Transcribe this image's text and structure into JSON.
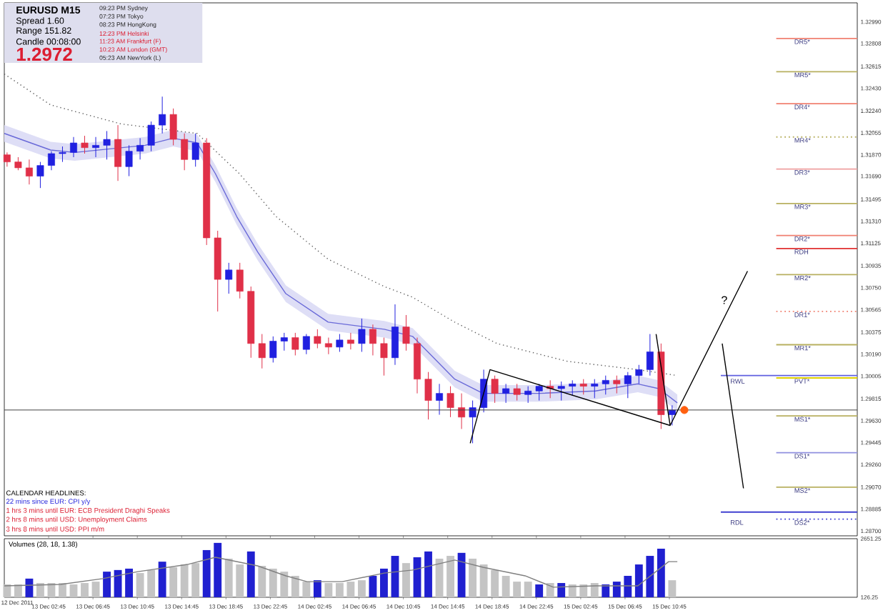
{
  "chart_data": [
    {
      "type": "candlestick",
      "title": "EURUSD M15",
      "x": [
        "2011-12-12T23:00",
        "2011-12-13T00:00",
        "2011-12-13T01:00",
        "2011-12-13T02:00",
        "2011-12-13T03:00",
        "2011-12-13T04:00",
        "2011-12-13T05:00",
        "2011-12-13T06:00",
        "2011-12-13T07:00",
        "2011-12-13T08:00",
        "2011-12-13T09:00",
        "2011-12-13T10:00",
        "2011-12-13T11:00",
        "2011-12-13T12:00",
        "2011-12-13T13:00",
        "2011-12-13T14:00",
        "2011-12-13T15:00",
        "2011-12-13T16:00",
        "2011-12-13T17:00",
        "2011-12-13T18:00",
        "2011-12-13T19:00",
        "2011-12-13T20:00",
        "2011-12-13T21:00",
        "2011-12-13T22:00",
        "2011-12-13T23:00",
        "2011-12-14T00:00",
        "2011-12-14T01:00",
        "2011-12-14T02:00",
        "2011-12-14T03:00",
        "2011-12-14T04:00",
        "2011-12-14T05:00",
        "2011-12-14T06:00",
        "2011-12-14T07:00",
        "2011-12-14T08:00",
        "2011-12-14T09:00",
        "2011-12-14T10:00",
        "2011-12-14T11:00",
        "2011-12-14T12:00",
        "2011-12-14T13:00",
        "2011-12-14T14:00",
        "2011-12-14T15:00",
        "2011-12-14T16:00",
        "2011-12-14T17:00",
        "2011-12-14T18:00",
        "2011-12-14T19:00",
        "2011-12-14T20:00",
        "2011-12-14T21:00",
        "2011-12-14T22:00",
        "2011-12-14T23:00",
        "2011-12-15T00:00",
        "2011-12-15T01:00",
        "2011-12-15T02:00",
        "2011-12-15T03:00",
        "2011-12-15T04:00",
        "2011-12-15T05:00",
        "2011-12-15T06:00",
        "2011-12-15T07:00",
        "2011-12-15T08:00",
        "2011-12-15T09:00",
        "2011-12-15T10:00",
        "2011-12-15T11:00"
      ],
      "ohlc": [
        [
          1.3187,
          1.3189,
          1.3177,
          1.3181
        ],
        [
          1.3181,
          1.3185,
          1.3174,
          1.3176
        ],
        [
          1.3176,
          1.3183,
          1.3162,
          1.3169
        ],
        [
          1.3169,
          1.3181,
          1.3159,
          1.3178
        ],
        [
          1.3178,
          1.319,
          1.3174,
          1.3188
        ],
        [
          1.3188,
          1.3194,
          1.3181,
          1.3189
        ],
        [
          1.3189,
          1.3202,
          1.3185,
          1.3197
        ],
        [
          1.3197,
          1.3203,
          1.3188,
          1.3193
        ],
        [
          1.3193,
          1.3202,
          1.3185,
          1.3195
        ],
        [
          1.3195,
          1.3207,
          1.3183,
          1.32
        ],
        [
          1.32,
          1.3212,
          1.3165,
          1.3177
        ],
        [
          1.3177,
          1.3195,
          1.3169,
          1.319
        ],
        [
          1.319,
          1.3201,
          1.3183,
          1.3195
        ],
        [
          1.3195,
          1.3215,
          1.319,
          1.3212
        ],
        [
          1.3212,
          1.3236,
          1.3205,
          1.3221
        ],
        [
          1.3221,
          1.3226,
          1.3195,
          1.32
        ],
        [
          1.32,
          1.3205,
          1.3174,
          1.3183
        ],
        [
          1.3183,
          1.3205,
          1.3177,
          1.3197
        ],
        [
          1.3197,
          1.3201,
          1.3111,
          1.3117
        ],
        [
          1.3117,
          1.3123,
          1.3055,
          1.3082
        ],
        [
          1.3082,
          1.3096,
          1.307,
          1.309
        ],
        [
          1.309,
          1.3096,
          1.3066,
          1.3072
        ],
        [
          1.3072,
          1.3076,
          1.3016,
          1.3028
        ],
        [
          1.3028,
          1.3036,
          1.3007,
          1.3016
        ],
        [
          1.3016,
          1.3034,
          1.3012,
          1.303
        ],
        [
          1.303,
          1.3037,
          1.3022,
          1.3033
        ],
        [
          1.3033,
          1.3037,
          1.3018,
          1.3023
        ],
        [
          1.3023,
          1.3036,
          1.3019,
          1.3034
        ],
        [
          1.3034,
          1.304,
          1.3024,
          1.3028
        ],
        [
          1.3028,
          1.3033,
          1.3019,
          1.3025
        ],
        [
          1.3025,
          1.3036,
          1.3021,
          1.3031
        ],
        [
          1.3031,
          1.3037,
          1.3023,
          1.3028
        ],
        [
          1.3028,
          1.3049,
          1.3021,
          1.304
        ],
        [
          1.304,
          1.3044,
          1.3018,
          1.3028
        ],
        [
          1.3028,
          1.3033,
          1.3001,
          1.3016
        ],
        [
          1.3016,
          1.3061,
          1.301,
          1.3042
        ],
        [
          1.3042,
          1.3052,
          1.3022,
          1.3028
        ],
        [
          1.3028,
          1.3033,
          1.2986,
          1.2998
        ],
        [
          1.2998,
          1.3004,
          1.2964,
          1.298
        ],
        [
          1.298,
          1.2994,
          1.2968,
          1.2986
        ],
        [
          1.2986,
          1.2992,
          1.2966,
          1.2974
        ],
        [
          1.2974,
          1.2986,
          1.2956,
          1.2966
        ],
        [
          1.2966,
          1.298,
          1.2944,
          1.2974
        ],
        [
          1.2974,
          1.3006,
          1.297,
          1.2998
        ],
        [
          1.2998,
          1.3001,
          1.2978,
          1.2986
        ],
        [
          1.2986,
          1.2994,
          1.2978,
          1.299
        ],
        [
          1.299,
          1.2994,
          1.298,
          1.2985
        ],
        [
          1.2985,
          1.2992,
          1.2978,
          1.2988
        ],
        [
          1.2988,
          1.2994,
          1.298,
          1.2992
        ],
        [
          1.2992,
          1.2997,
          1.2982,
          1.299
        ],
        [
          1.299,
          1.2996,
          1.298,
          1.2992
        ],
        [
          1.2992,
          1.2997,
          1.2984,
          1.2994
        ],
        [
          1.2994,
          1.2998,
          1.2985,
          1.2992
        ],
        [
          1.2992,
          1.2998,
          1.2982,
          1.2994
        ],
        [
          1.2994,
          1.3001,
          1.2985,
          1.2997
        ],
        [
          1.2997,
          1.3001,
          1.2986,
          1.2994
        ],
        [
          1.2994,
          1.3004,
          1.2982,
          1.3001
        ],
        [
          1.3001,
          1.301,
          1.2994,
          1.3006
        ],
        [
          1.3006,
          1.3036,
          1.3001,
          1.3021
        ],
        [
          1.3021,
          1.3028,
          1.2956,
          1.2968
        ],
        [
          1.2968,
          1.2976,
          1.2959,
          1.2972
        ]
      ],
      "colors": [
        "#e03048",
        "#e03048",
        "#e03048",
        "#2020e0",
        "#2020e0",
        "#2020e0",
        "#2020e0",
        "#e03048",
        "#2020e0",
        "#2020e0",
        "#e03048",
        "#2020e0",
        "#2020e0",
        "#2020e0",
        "#2020e0",
        "#e03048",
        "#e03048",
        "#2020e0",
        "#e03048",
        "#e03048",
        "#2020e0",
        "#e03048",
        "#e03048",
        "#e03048",
        "#2020e0",
        "#2020e0",
        "#e03048",
        "#2020e0",
        "#e03048",
        "#e03048",
        "#2020e0",
        "#e03048",
        "#2020e0",
        "#e03048",
        "#e03048",
        "#2020e0",
        "#e03048",
        "#e03048",
        "#e03048",
        "#2020e0",
        "#e03048",
        "#e03048",
        "#2020e0",
        "#2020e0",
        "#e03048",
        "#2020e0",
        "#e03048",
        "#2020e0",
        "#2020e0",
        "#e03048",
        "#2020e0",
        "#2020e0",
        "#e03048",
        "#2020e0",
        "#2020e0",
        "#e03048",
        "#2020e0",
        "#2020e0",
        "#2020e0",
        "#e03048",
        "#2020e0"
      ],
      "series": [
        {
          "type": "line",
          "color": "#6a6ad8",
          "x": [
            "2011-12-12T22:45",
            "2011-12-13T02:56",
            "2011-12-13T05:06",
            "2011-12-13T11:27",
            "2011-12-13T13:59",
            "2011-12-13T16:09",
            "2011-12-13T17:48",
            "2011-12-13T19:43",
            "2011-12-13T21:37",
            "2011-12-14T00:09",
            "2011-12-14T03:58",
            "2011-12-14T09:02",
            "2011-12-14T11:35",
            "2011-12-14T14:07",
            "2011-12-14T15:23",
            "2011-12-14T17:56",
            "2011-12-14T23:01",
            "2011-12-15T04:05",
            "2011-12-15T07:54",
            "2011-12-15T09:48",
            "2011-12-15T11:28"
          ],
          "values": [
            1.3205,
            1.3191,
            1.3189,
            1.3195,
            1.3201,
            1.3197,
            1.3171,
            1.3135,
            1.3105,
            1.307,
            1.3046,
            1.304,
            1.3034,
            1.301,
            1.2998,
            1.2986,
            1.2986,
            1.2988,
            1.2994,
            1.299,
            1.2978
          ],
          "lower": [
            1.3198,
            1.3184,
            1.3182,
            1.3188,
            1.3194,
            1.319,
            1.3164,
            1.3128,
            1.3098,
            1.3063,
            1.3039,
            1.3033,
            1.3027,
            1.3003,
            1.2991,
            1.2979,
            1.2979,
            1.2981,
            1.2987,
            1.2983,
            1.2971
          ],
          "upper": [
            1.3212,
            1.3198,
            1.3196,
            1.3202,
            1.3208,
            1.3204,
            1.3178,
            1.3142,
            1.3112,
            1.3077,
            1.3053,
            1.3047,
            1.3041,
            1.3017,
            1.3005,
            1.2993,
            1.2993,
            1.2995,
            1.3001,
            1.2997,
            1.2985
          ]
        },
        {
          "type": "line",
          "color": "#606060",
          "line_style": "dotted",
          "x": [
            "2011-12-12T22:45",
            "2011-12-13T02:56",
            "2011-12-13T09:17",
            "2011-12-13T16:09",
            "2011-12-13T19:58",
            "2011-12-13T23:16",
            "2011-12-14T03:58",
            "2011-12-14T09:02",
            "2011-12-14T11:35",
            "2011-12-14T15:23",
            "2011-12-14T19:12",
            "2011-12-15T01:33",
            "2011-12-15T07:54",
            "2011-12-15T11:28"
          ],
          "values": [
            1.3255,
            1.3229,
            1.3213,
            1.3205,
            1.3171,
            1.3135,
            1.3099,
            1.3076,
            1.3067,
            1.3046,
            1.3028,
            1.3013,
            1.3006,
            1.3001
          ]
        },
        {
          "type": "line",
          "color": "#000000",
          "x": [
            "2011-12-14T16:47",
            "2011-12-14T18:34",
            "2011-12-15T10:49"
          ],
          "values": [
            1.2944,
            1.3006,
            1.2959
          ]
        },
        {
          "type": "line",
          "color": "#000000",
          "x": [
            "2011-12-15T09:33",
            "2011-12-15T10:49",
            "2011-12-15T17:48"
          ],
          "values": [
            1.3036,
            1.2959,
            1.3089
          ]
        },
        {
          "type": "line",
          "color": "#000000",
          "x": [
            "2011-12-15T15:31",
            "2011-12-15T17:26"
          ],
          "values": [
            1.3028,
            1.2906
          ]
        },
        {
          "type": "scatter",
          "color": "#ff6010",
          "marker": "circle",
          "x": [
            "2011-12-15T12:06"
          ],
          "values": [
            1.2972
          ]
        }
      ],
      "xlim": [
        "2011-12-12T22:45",
        "2011-12-16T03:42"
      ],
      "ylim": [
        1.2866,
        1.3315
      ],
      "yticks": [
        {
          "value": 1.3299,
          "label": "1.32990"
        },
        {
          "value": 1.32808,
          "label": "1.32808"
        },
        {
          "value": 1.32615,
          "label": "1.32615"
        },
        {
          "value": 1.3243,
          "label": "1.32430"
        },
        {
          "value": 1.3224,
          "label": "1.32240"
        },
        {
          "value": 1.32055,
          "label": "1.32055"
        },
        {
          "value": 1.3187,
          "label": "1.31870"
        },
        {
          "value": 1.3169,
          "label": "1.31690"
        },
        {
          "value": 1.31495,
          "label": "1.31495"
        },
        {
          "value": 1.3131,
          "label": "1.31310"
        },
        {
          "value": 1.31125,
          "label": "1.31125"
        },
        {
          "value": 1.30935,
          "label": "1.30935"
        },
        {
          "value": 1.3075,
          "label": "1.30750"
        },
        {
          "value": 1.30565,
          "label": "1.30565"
        },
        {
          "value": 1.30375,
          "label": "1.30375"
        },
        {
          "value": 1.3019,
          "label": "1.30190"
        },
        {
          "value": 1.30005,
          "label": "1.30005"
        },
        {
          "value": 1.29815,
          "label": "1.29815"
        },
        {
          "value": 1.2963,
          "label": "1.29630"
        },
        {
          "value": 1.29445,
          "label": "1.29445"
        },
        {
          "value": 1.2926,
          "label": "1.29260"
        },
        {
          "value": 1.2907,
          "label": "1.29070"
        },
        {
          "value": 1.28885,
          "label": "1.28885"
        },
        {
          "value": 1.287,
          "label": "1.28700"
        }
      ],
      "xticks": [
        {
          "value": "2011-12-13T02:45",
          "label": null
        },
        {
          "value": "2011-12-13T06:45",
          "label": null
        },
        {
          "value": "2011-12-13T10:45",
          "label": null
        },
        {
          "value": "2011-12-13T14:45",
          "label": null
        },
        {
          "value": "2011-12-13T18:45",
          "label": null
        },
        {
          "value": "2011-12-13T22:45",
          "label": null
        },
        {
          "value": "2011-12-14T02:45",
          "label": null
        },
        {
          "value": "2011-12-14T06:45",
          "label": null
        },
        {
          "value": "2011-12-14T10:45",
          "label": null
        },
        {
          "value": "2011-12-14T14:45",
          "label": null
        },
        {
          "value": "2011-12-14T18:45",
          "label": null
        },
        {
          "value": "2011-12-14T22:45",
          "label": null
        },
        {
          "value": "2011-12-15T02:45",
          "label": null
        },
        {
          "value": "2011-12-15T06:45",
          "label": null
        },
        {
          "value": "2011-12-15T10:45",
          "label": null
        }
      ],
      "tick_labels": "y",
      "ref_lines": [
        {
          "axis": "y",
          "value": 1.3285,
          "label": "DR5*",
          "color": "#f08070"
        },
        {
          "axis": "y",
          "value": 1.3257,
          "label": "MR5*",
          "color": "#b8b060"
        },
        {
          "axis": "y",
          "value": 1.323,
          "label": "DR4*",
          "color": "#f08070"
        },
        {
          "axis": "y",
          "value": 1.3202,
          "label": "MR4*",
          "color": "#b8b060",
          "line_style": "dotted"
        },
        {
          "axis": "y",
          "value": 1.3175,
          "label": "DR3*",
          "color": "#f0a0a0"
        },
        {
          "axis": "y",
          "value": 1.3146,
          "label": "MR3*",
          "color": "#b8b060"
        },
        {
          "axis": "y",
          "value": 1.3119,
          "label": "DR2*",
          "color": "#f08070"
        },
        {
          "axis": "y",
          "value": 1.3108,
          "label": "RDH",
          "color": "#e03030"
        },
        {
          "axis": "y",
          "value": 1.3086,
          "label": "MR2*",
          "color": "#b8b060"
        },
        {
          "axis": "y",
          "value": 1.3055,
          "label": "DR1*",
          "color": "#f08070",
          "line_style": "dotted"
        },
        {
          "axis": "y",
          "value": 1.3027,
          "label": "MR1*",
          "color": "#b8b060"
        },
        {
          "axis": "y",
          "value": 1.3001,
          "label": "RWL",
          "color": "#6060e0"
        },
        {
          "axis": "y",
          "value": 1.2999,
          "label": "PVT*",
          "color": "#e0d000"
        },
        {
          "axis": "y",
          "value": 1.2967,
          "label": "MS1*",
          "color": "#b8b060"
        },
        {
          "axis": "y",
          "value": 1.2936,
          "label": "DS1*",
          "color": "#9090e0"
        },
        {
          "axis": "y",
          "value": 1.2907,
          "label": "MS2*",
          "color": "#b8b060"
        },
        {
          "axis": "y",
          "value": 1.2886,
          "label": "RDL",
          "color": "#4040d0"
        },
        {
          "axis": "y",
          "value": 1.288,
          "label": "DS2*",
          "color": "#4040d0",
          "line_style": "dotted"
        },
        {
          "axis": "y",
          "value": 1.2972,
          "color": "#404040"
        }
      ],
      "annotations": [
        "Spread 1.60",
        "Range 151.82",
        "Candle 00:08:00",
        "1.2972",
        "09:23 PM Sydney",
        "07:23 PM Tokyo",
        "08:23 PM HongKong",
        "12:23 PM Helsinki",
        "11:23 AM Frankfurt (F)",
        "10:23 AM London (GMT)",
        "05:23 AM NewYork (L)",
        "CALENDAR HEADLINES:",
        "22 mins since EUR: CPI y/y",
        "1 hrs 3 mins until EUR: ECB President Draghi Speaks",
        "2 hrs 8 mins until USD: Unemployment Claims",
        "3 hrs 8 mins until USD: PPI m/m",
        "?"
      ]
    },
    {
      "type": "bar",
      "title": "Volumes (28, 18, 1.38)",
      "x": [
        "2011-12-12T23:00",
        "2011-12-13T00:00",
        "2011-12-13T01:00",
        "2011-12-13T02:00",
        "2011-12-13T03:00",
        "2011-12-13T04:00",
        "2011-12-13T05:00",
        "2011-12-13T06:00",
        "2011-12-13T07:00",
        "2011-12-13T08:00",
        "2011-12-13T09:00",
        "2011-12-13T10:00",
        "2011-12-13T11:00",
        "2011-12-13T12:00",
        "2011-12-13T13:00",
        "2011-12-13T14:00",
        "2011-12-13T15:00",
        "2011-12-13T16:00",
        "2011-12-13T17:00",
        "2011-12-13T18:00",
        "2011-12-13T19:00",
        "2011-12-13T20:00",
        "2011-12-13T21:00",
        "2011-12-13T22:00",
        "2011-12-13T23:00",
        "2011-12-14T00:00",
        "2011-12-14T01:00",
        "2011-12-14T02:00",
        "2011-12-14T03:00",
        "2011-12-14T04:00",
        "2011-12-14T05:00",
        "2011-12-14T06:00",
        "2011-12-14T07:00",
        "2011-12-14T08:00",
        "2011-12-14T09:00",
        "2011-12-14T10:00",
        "2011-12-14T11:00",
        "2011-12-14T12:00",
        "2011-12-14T13:00",
        "2011-12-14T14:00",
        "2011-12-14T15:00",
        "2011-12-14T16:00",
        "2011-12-14T17:00",
        "2011-12-14T18:00",
        "2011-12-14T19:00",
        "2011-12-14T20:00",
        "2011-12-14T21:00",
        "2011-12-14T22:00",
        "2011-12-14T23:00",
        "2011-12-15T00:00",
        "2011-12-15T01:00",
        "2011-12-15T02:00",
        "2011-12-15T03:00",
        "2011-12-15T04:00",
        "2011-12-15T05:00",
        "2011-12-15T06:00",
        "2011-12-15T07:00",
        "2011-12-15T08:00",
        "2011-12-15T09:00",
        "2011-12-15T10:00",
        "2011-12-15T11:00"
      ],
      "values": [
        680,
        680,
        930,
        740,
        740,
        740,
        680,
        740,
        800,
        1230,
        1300,
        1360,
        1170,
        1300,
        1660,
        1420,
        1540,
        1600,
        2160,
        2470,
        1790,
        1540,
        2100,
        1480,
        1360,
        1230,
        1050,
        800,
        860,
        740,
        740,
        800,
        860,
        1050,
        1360,
        1910,
        1600,
        1850,
        2100,
        1790,
        1910,
        2040,
        1790,
        1540,
        1300,
        1050,
        800,
        800,
        680,
        740,
        740,
        680,
        680,
        740,
        680,
        800,
        1050,
        1540,
        1910,
        2220,
        860
      ],
      "colors": [
        "#c4c4c4",
        "#c4c4c4",
        "#2020d0",
        "#c4c4c4",
        "#c4c4c4",
        "#c4c4c4",
        "#c4c4c4",
        "#c4c4c4",
        "#c4c4c4",
        "#2020d0",
        "#2020d0",
        "#2020d0",
        "#c4c4c4",
        "#c4c4c4",
        "#2020d0",
        "#c4c4c4",
        "#c4c4c4",
        "#c4c4c4",
        "#2020d0",
        "#2020d0",
        "#c4c4c4",
        "#c4c4c4",
        "#2020d0",
        "#c4c4c4",
        "#c4c4c4",
        "#c4c4c4",
        "#c4c4c4",
        "#c4c4c4",
        "#2020d0",
        "#c4c4c4",
        "#c4c4c4",
        "#c4c4c4",
        "#c4c4c4",
        "#2020d0",
        "#2020d0",
        "#2020d0",
        "#c4c4c4",
        "#2020d0",
        "#2020d0",
        "#c4c4c4",
        "#c4c4c4",
        "#2020d0",
        "#c4c4c4",
        "#c4c4c4",
        "#c4c4c4",
        "#c4c4c4",
        "#c4c4c4",
        "#c4c4c4",
        "#2020d0",
        "#c4c4c4",
        "#2020d0",
        "#c4c4c4",
        "#c4c4c4",
        "#c4c4c4",
        "#2020d0",
        "#2020d0",
        "#2020d0",
        "#2020d0",
        "#2020d0",
        "#2020d0",
        "#c4c4c4"
      ],
      "series": [
        {
          "type": "line",
          "color": "#808080",
          "x": [
            "2011-12-12T22:45",
            "2011-12-13T03:50",
            "2011-12-13T07:38",
            "2011-12-13T10:48",
            "2011-12-13T15:16",
            "2011-12-13T17:48",
            "2011-12-13T21:36",
            "2011-12-14T00:09",
            "2011-12-14T02:04",
            "2011-12-14T05:14",
            "2011-12-14T09:02",
            "2011-12-14T11:35",
            "2011-12-14T15:23",
            "2011-12-14T17:56",
            "2011-12-14T21:44",
            "2011-12-15T00:17",
            "2011-12-15T04:05",
            "2011-12-15T07:54",
            "2011-12-15T10:41",
            "2011-12-15T11:28"
          ],
          "values": [
            620,
            680,
            930,
            1230,
            1540,
            1850,
            1480,
            1050,
            800,
            800,
            1170,
            1300,
            1730,
            1420,
            1050,
            560,
            620,
            620,
            1660,
            1660
          ]
        }
      ],
      "xlim": [
        "2011-12-12T22:45",
        "2011-12-16T03:42"
      ],
      "ylim": [
        126.25,
        2651.25
      ],
      "yticks": [
        126.25,
        2651.25
      ],
      "annotations": [
        "12 Dec 2011"
      ],
      "xticks": [
        {
          "value": "2011-12-13T02:45",
          "label": "13 Dec 02:45"
        },
        {
          "value": "2011-12-13T06:45",
          "label": "13 Dec 06:45"
        },
        {
          "value": "2011-12-13T10:45",
          "label": "13 Dec 10:45"
        },
        {
          "value": "2011-12-13T14:45",
          "label": "13 Dec 14:45"
        },
        {
          "value": "2011-12-13T18:45",
          "label": "13 Dec 18:45"
        },
        {
          "value": "2011-12-13T22:45",
          "label": "13 Dec 22:45"
        },
        {
          "value": "2011-12-14T02:45",
          "label": "14 Dec 02:45"
        },
        {
          "value": "2011-12-14T06:45",
          "label": "14 Dec 06:45"
        },
        {
          "value": "2011-12-14T10:45",
          "label": "14 Dec 10:45"
        },
        {
          "value": "2011-12-14T14:45",
          "label": "14 Dec 14:45"
        },
        {
          "value": "2011-12-14T18:45",
          "label": "14 Dec 18:45"
        },
        {
          "value": "2011-12-14T22:45",
          "label": "14 Dec 22:45"
        },
        {
          "value": "2011-12-15T02:45",
          "label": "15 Dec 02:45"
        },
        {
          "value": "2011-12-15T06:45",
          "label": "15 Dec 06:45"
        },
        {
          "value": "2011-12-15T10:45",
          "label": "15 Dec 10:45"
        }
      ]
    }
  ]
}
